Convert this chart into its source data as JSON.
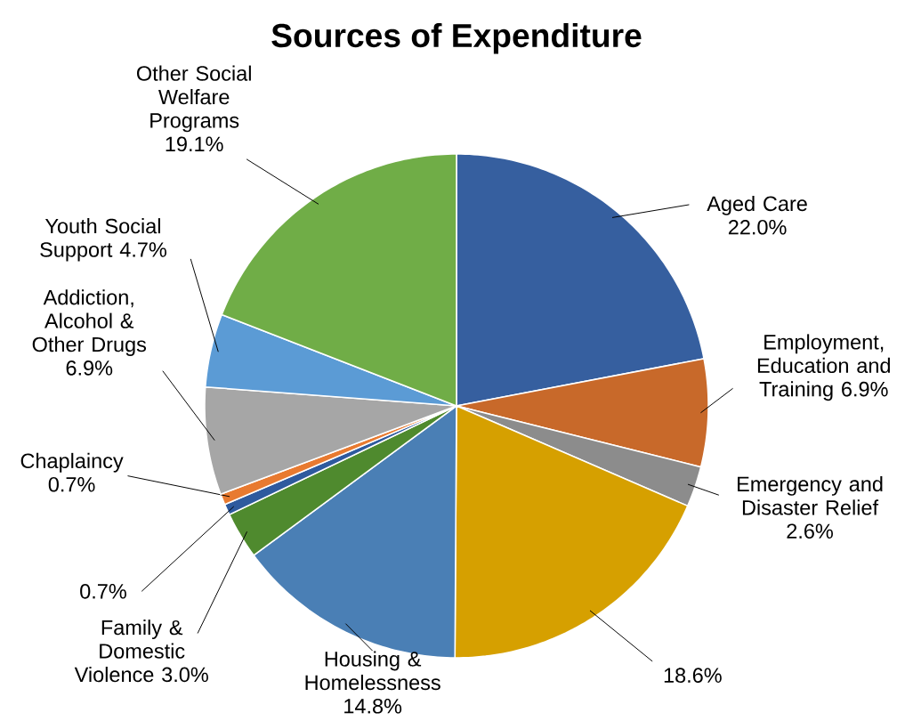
{
  "chart_data": {
    "type": "pie",
    "title": "Sources of Expenditure",
    "categories": [
      "Aged Care",
      "Employment, Education and Training",
      "Emergency and Disaster Relief",
      null,
      "Housing & Homelessness",
      "Family & Domestic Violence",
      null,
      "Chaplaincy",
      "Addiction, Alcohol & Other Drugs",
      "Youth Social Support",
      "Other Social Welfare Programs"
    ],
    "values": [
      22.0,
      6.9,
      2.6,
      18.6,
      14.8,
      3.0,
      0.7,
      0.7,
      6.9,
      4.7,
      19.1
    ],
    "colors": [
      "#365f9f",
      "#c8692a",
      "#8c8c8c",
      "#d6a000",
      "#4a7fb5",
      "#4f8a2e",
      "#2e5a9e",
      "#e87a30",
      "#a6a6a6",
      "#5b9bd5",
      "#70ad47"
    ],
    "value_labels": [
      "22.0%",
      "6.9%",
      "2.6%",
      "18.6%",
      "14.8%",
      "3.0%",
      "0.7%",
      "0.7%",
      "6.9%",
      "4.7%",
      "19.1%"
    ]
  }
}
